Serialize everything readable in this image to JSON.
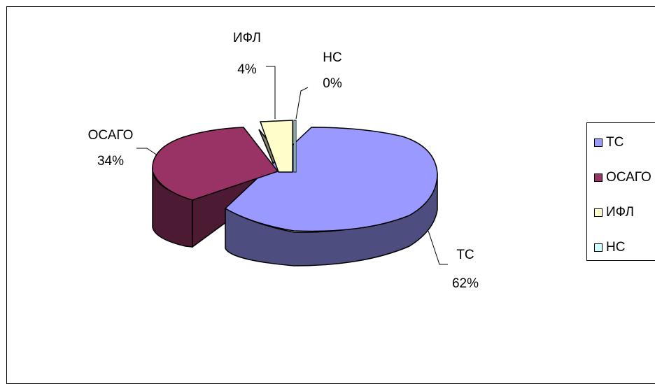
{
  "chart_data": {
    "type": "pie",
    "slices": [
      {
        "label": "ТС",
        "percent_label": "62%",
        "value": 62,
        "color": "#9999FF",
        "side_color": "#4D4D80"
      },
      {
        "label": "ОСАГО",
        "percent_label": "34%",
        "value": 34,
        "color": "#993366",
        "side_color": "#4D1A33"
      },
      {
        "label": "ИФЛ",
        "percent_label": "4%",
        "value": 4,
        "color": "#FFFFCC",
        "side_color": "#808066"
      },
      {
        "label": "НС",
        "percent_label": "0%",
        "value": 0,
        "color": "#CCFFFF",
        "side_color": "#668080"
      }
    ],
    "legend": [
      "ТС",
      "ОСАГО",
      "ИФЛ",
      "НС"
    ],
    "legend_position": "right"
  }
}
